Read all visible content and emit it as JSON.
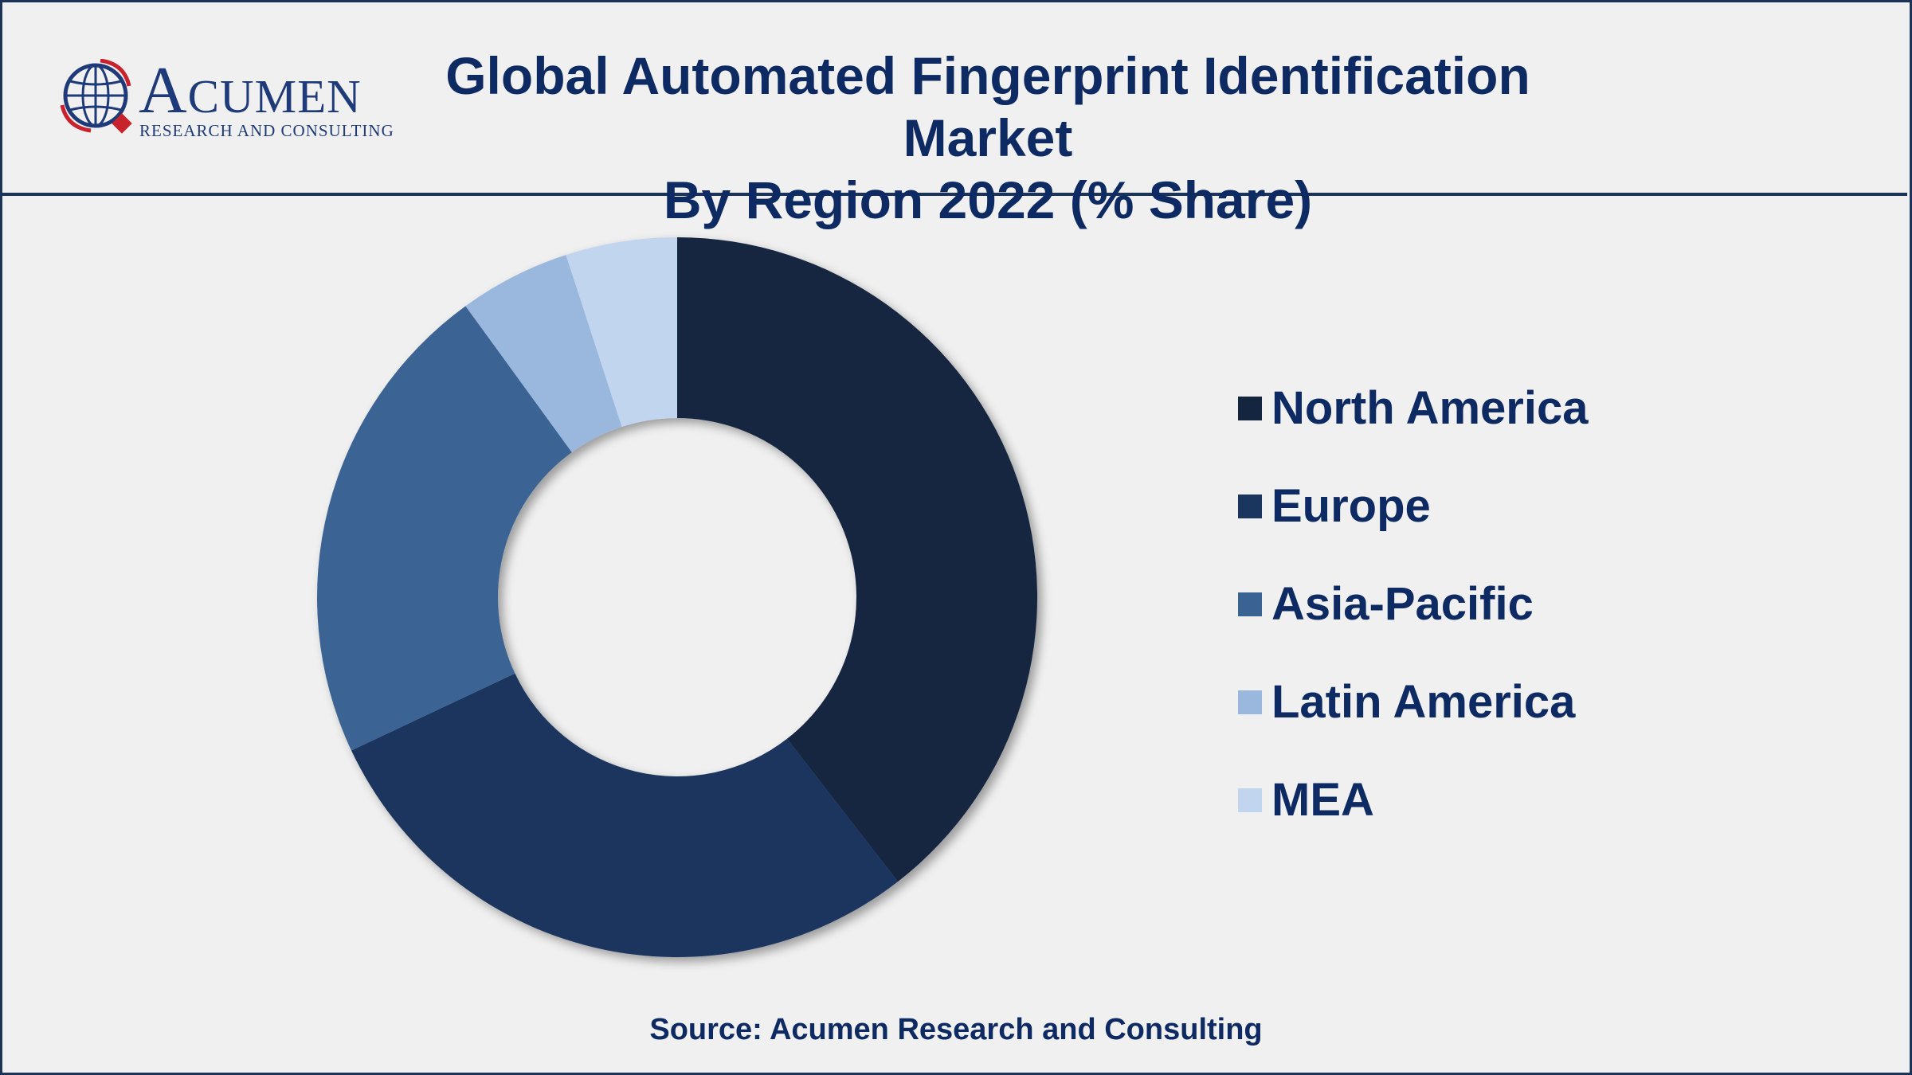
{
  "header": {
    "logo_word": "Acumen",
    "logo_sub": "RESEARCH AND CONSULTING",
    "title_line1": "Global Automated Fingerprint Identification Market",
    "title_line2": "By Region 2022 (% Share)"
  },
  "footer": {
    "source": "Source: Acumen Research and Consulting"
  },
  "colors": {
    "title": "#0e2a63",
    "border": "#1b3259",
    "background": "#f0f0f1"
  },
  "chart_data": {
    "type": "pie",
    "variant": "donut",
    "title": "Global Automated Fingerprint Identification Market By Region 2022 (% Share)",
    "unit": "% share",
    "categories": [
      "North America",
      "Europe",
      "Asia-Pacific",
      "Latin America",
      "MEA"
    ],
    "values": [
      39.5,
      28.5,
      22,
      5,
      5
    ],
    "colors": [
      "#13253f",
      "#1b365e",
      "#3a6394",
      "#9ab7dd",
      "#c1d5ef"
    ],
    "legend_position": "right",
    "start_angle": "12 o'clock",
    "direction": "clockwise"
  }
}
